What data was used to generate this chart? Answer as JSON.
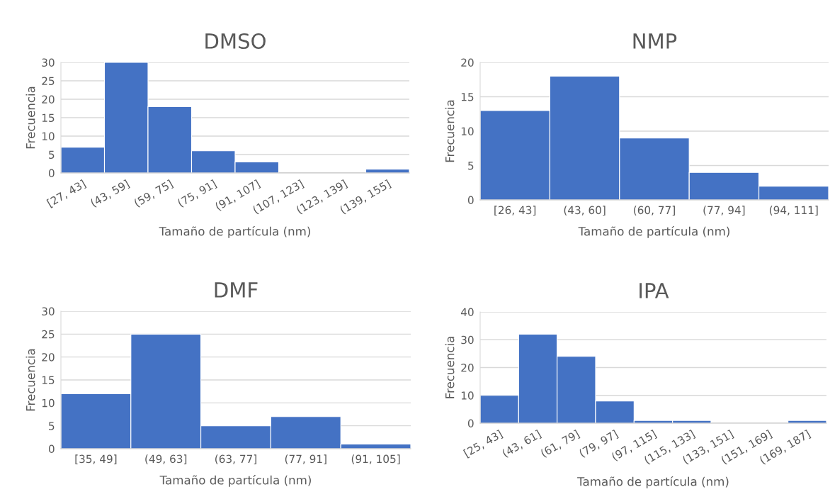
{
  "chart_data": [
    {
      "type": "bar",
      "title": "DMSO",
      "xlabel": "Tamaño de partícula (nm)",
      "ylabel": "Frecuencia",
      "categories": [
        "[27, 43]",
        "(43, 59]",
        "(59, 75]",
        "(75, 91]",
        "(91, 107]",
        "(107, 123]",
        "(123, 139]",
        "(139, 155]"
      ],
      "values": [
        7,
        30,
        18,
        6,
        3,
        0,
        0,
        1
      ],
      "color": "#4472c4",
      "ylim": [
        0,
        30
      ],
      "yticks": [
        0,
        5,
        10,
        15,
        20,
        25,
        30
      ],
      "grid": "y"
    },
    {
      "type": "bar",
      "title": "NMP",
      "xlabel": "Tamaño de partícula (nm)",
      "ylabel": "Frecuencia",
      "categories": [
        "[26, 43]",
        "(43, 60]",
        "(60, 77]",
        "(77, 94]",
        "(94, 111]"
      ],
      "values": [
        13,
        18,
        9,
        4,
        2
      ],
      "color": "#4472c4",
      "ylim": [
        0,
        20
      ],
      "yticks": [
        0,
        5,
        10,
        15,
        20
      ],
      "grid": "y"
    },
    {
      "type": "bar",
      "title": "DMF",
      "xlabel": "Tamaño de partícula (nm)",
      "ylabel": "Frecuencia",
      "categories": [
        "[35, 49]",
        "(49, 63]",
        "(63, 77]",
        "(77, 91]",
        "(91, 105]"
      ],
      "values": [
        12,
        25,
        5,
        7,
        1
      ],
      "color": "#4472c4",
      "ylim": [
        0,
        30
      ],
      "yticks": [
        0,
        5,
        10,
        15,
        20,
        25,
        30
      ],
      "grid": "y"
    },
    {
      "type": "bar",
      "title": "IPA",
      "xlabel": "Tamaño de partícula (nm)",
      "ylabel": "Frecuencia",
      "categories": [
        "[25, 43]",
        "(43, 61]",
        "(61, 79]",
        "(79, 97]",
        "(97, 115]",
        "(115, 133]",
        "(133, 151]",
        "(151, 169]",
        "(169, 187]"
      ],
      "values": [
        10,
        32,
        24,
        8,
        1,
        1,
        0,
        0,
        1
      ],
      "color": "#4472c4",
      "ylim": [
        0,
        40
      ],
      "yticks": [
        0,
        10,
        20,
        30,
        40
      ],
      "grid": "y"
    }
  ]
}
